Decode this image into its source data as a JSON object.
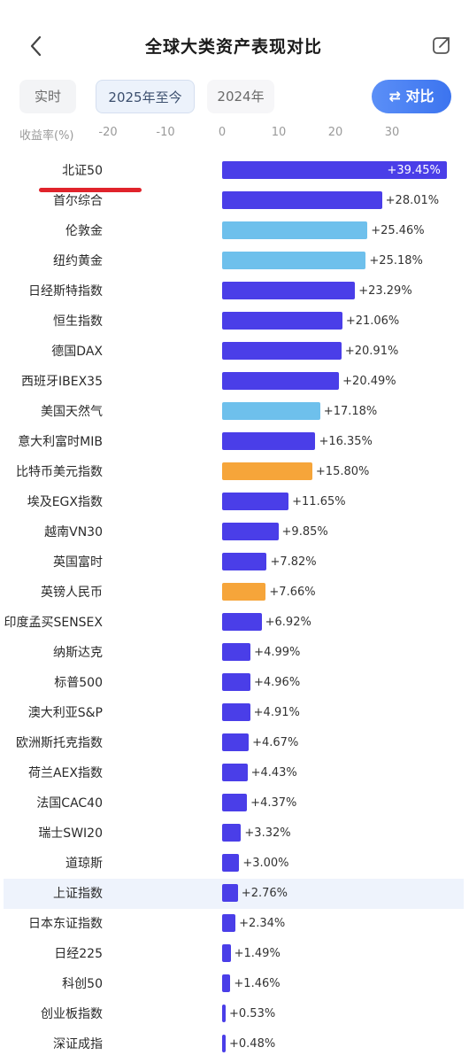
{
  "header": {
    "title": "全球大类资产表现对比"
  },
  "tabs": [
    {
      "label": "实时",
      "active": false
    },
    {
      "label": "2025年至今",
      "active": true
    },
    {
      "label": "2024年",
      "active": false
    }
  ],
  "compare_button": {
    "label": "⇄ 对比"
  },
  "axis": {
    "label": "收益率(%)",
    "ticks": [
      "-20",
      "-10",
      "0",
      "10",
      "20",
      "30"
    ]
  },
  "colors": {
    "index": "#4a3ee8",
    "commodity": "#6ec0ec",
    "fx": "#f6a53a",
    "highlight_row": "#eef3fc",
    "annotation": "#e0232b"
  },
  "chart_data": {
    "type": "bar",
    "orientation": "horizontal",
    "xlabel": "收益率(%)",
    "xlim": [
      -20,
      38
    ],
    "categories": [
      "北证50",
      "首尔综合",
      "伦敦金",
      "纽约黄金",
      "日经斯特指数",
      "恒生指数",
      "德国DAX",
      "西班牙IBEX35",
      "美国天然气",
      "意大利富时MIB",
      "比特币美元指数",
      "埃及EGX指数",
      "越南VN30",
      "英国富时",
      "英镑人民币",
      "印度孟买SENSEX",
      "纳斯达克",
      "标普500",
      "澳大利亚S&P",
      "欧洲斯托克指数",
      "荷兰AEX指数",
      "法国CAC40",
      "瑞士SWI20",
      "道琼斯",
      "上证指数",
      "日本东证指数",
      "日经225",
      "科创50",
      "创业板指数",
      "深证成指"
    ],
    "values": [
      39.45,
      28.01,
      25.46,
      25.18,
      23.29,
      21.06,
      20.91,
      20.49,
      17.18,
      16.35,
      15.8,
      11.65,
      9.85,
      7.82,
      7.66,
      6.92,
      4.99,
      4.96,
      4.91,
      4.67,
      4.43,
      4.37,
      3.32,
      3.0,
      2.76,
      2.34,
      1.49,
      1.46,
      0.53,
      0.48
    ],
    "labels": [
      "+39.45%",
      "+28.01%",
      "+25.46%",
      "+25.18%",
      "+23.29%",
      "+21.06%",
      "+20.91%",
      "+20.49%",
      "+17.18%",
      "+16.35%",
      "+15.80%",
      "+11.65%",
      "+9.85%",
      "+7.82%",
      "+7.66%",
      "+6.92%",
      "+4.99%",
      "+4.96%",
      "+4.91%",
      "+4.67%",
      "+4.43%",
      "+4.37%",
      "+3.32%",
      "+3.00%",
      "+2.76%",
      "+2.34%",
      "+1.49%",
      "+1.46%",
      "+0.53%",
      "+0.48%"
    ],
    "kinds": [
      "index",
      "index",
      "commodity",
      "commodity",
      "index",
      "index",
      "index",
      "index",
      "commodity",
      "index",
      "fx",
      "index",
      "index",
      "index",
      "fx",
      "index",
      "index",
      "index",
      "index",
      "index",
      "index",
      "index",
      "index",
      "index",
      "index",
      "index",
      "index",
      "index",
      "index",
      "index"
    ],
    "highlighted": "上证指数",
    "annotated": "北证50"
  }
}
